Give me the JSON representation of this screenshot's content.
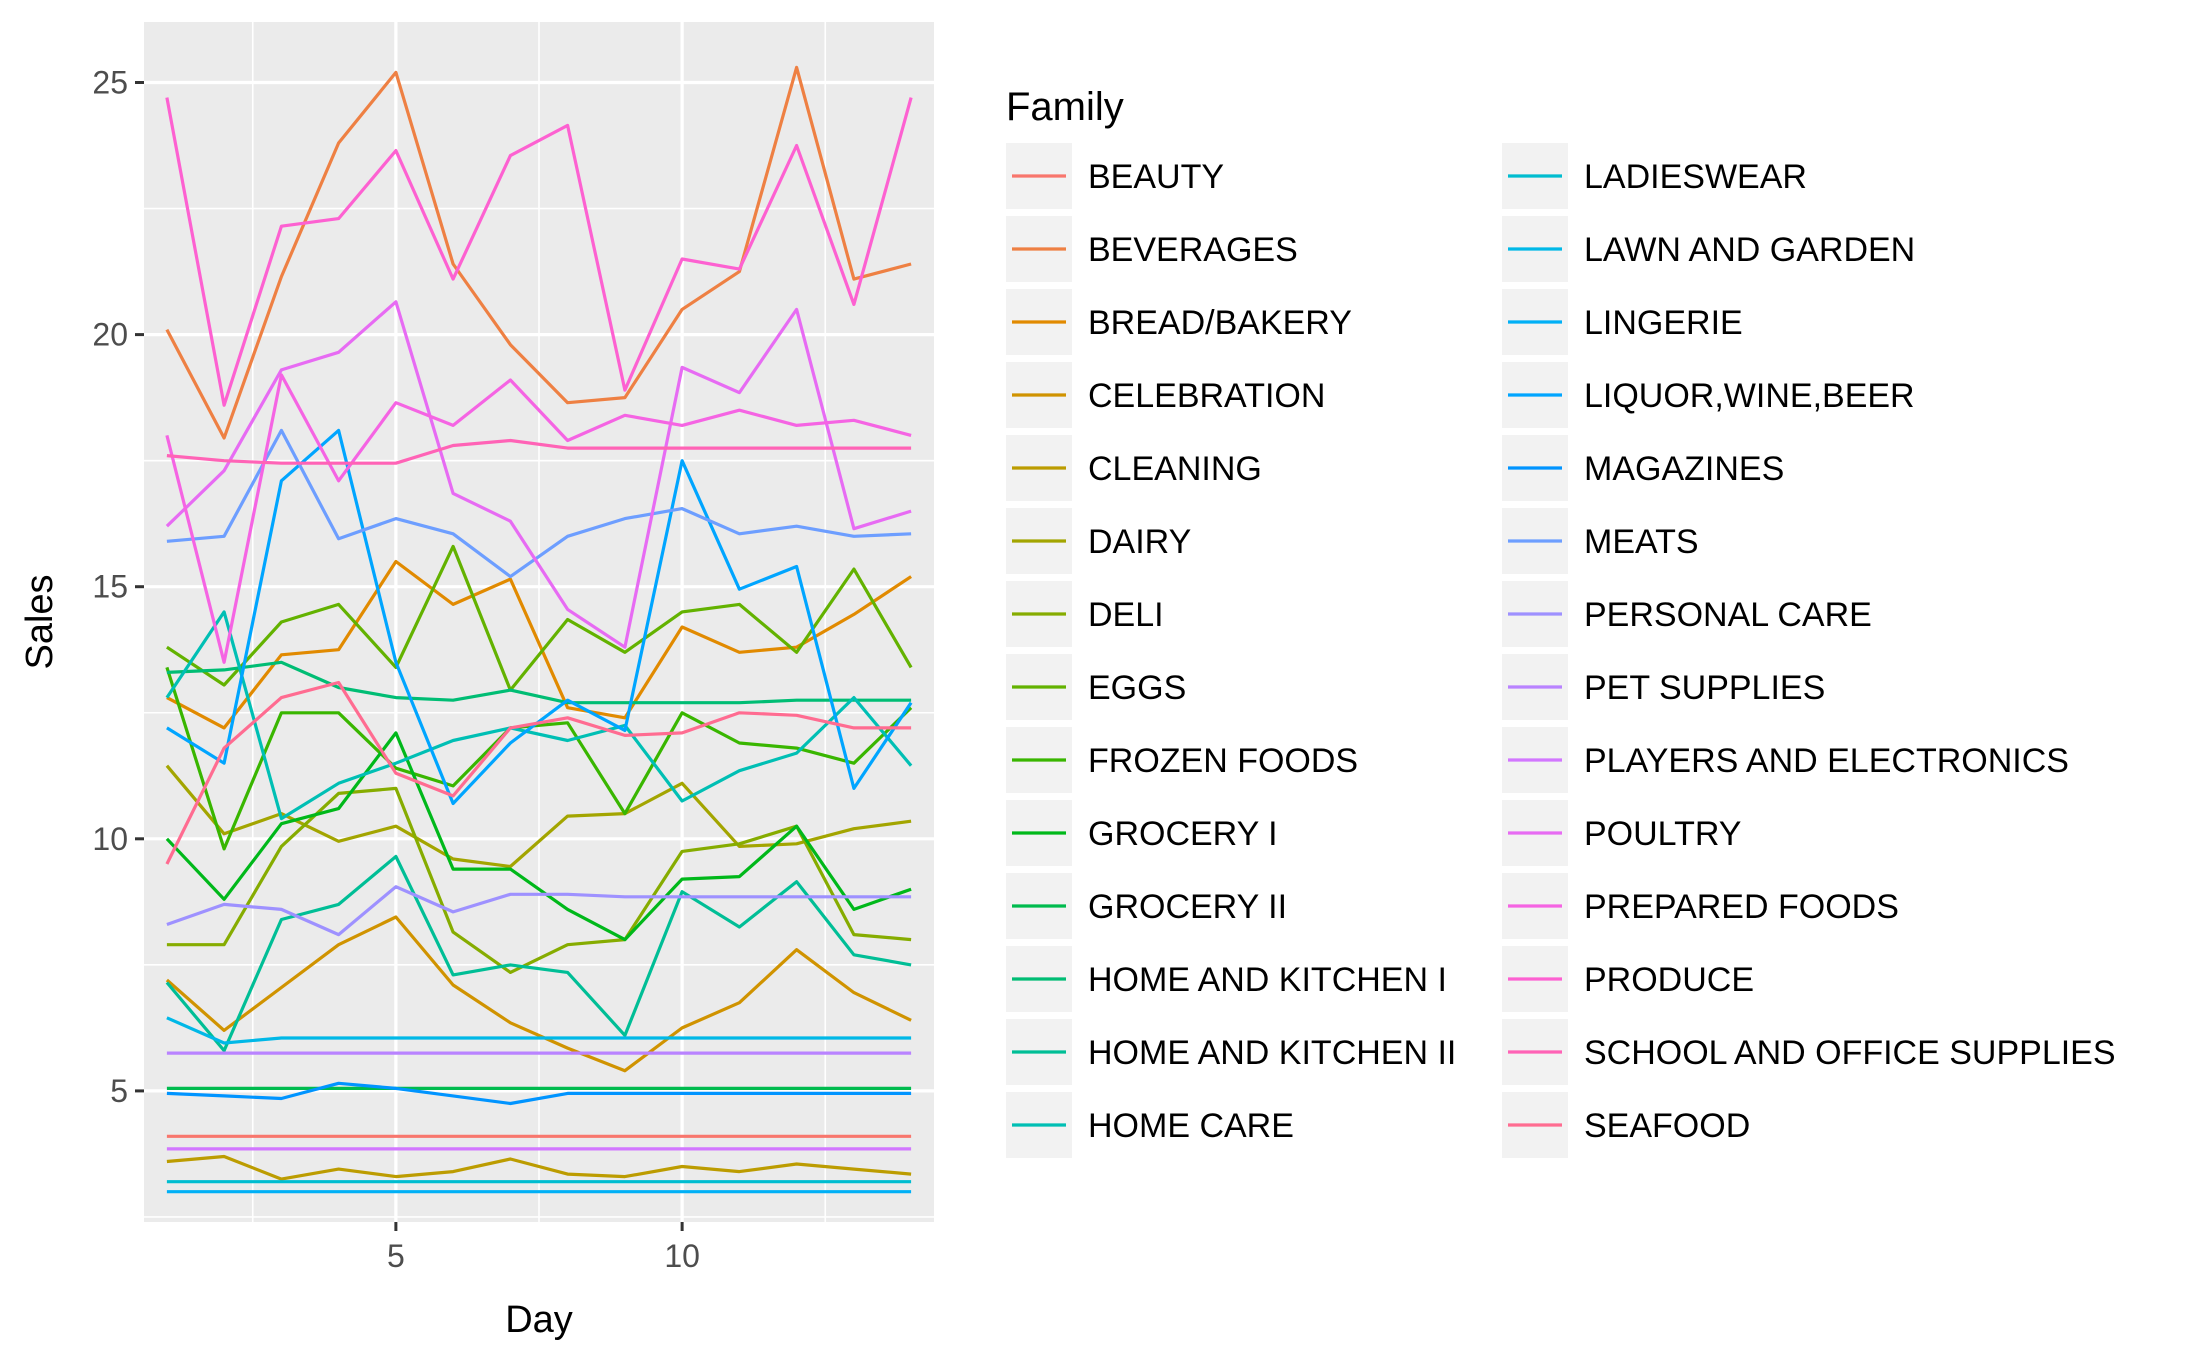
{
  "chart_data": {
    "type": "line",
    "xlabel": "Day",
    "ylabel": "Sales",
    "xlim": [
      0.6,
      14.4
    ],
    "ylim": [
      2.4,
      26.2
    ],
    "x_ticks": [
      5,
      10
    ],
    "y_ticks": [
      5,
      10,
      15,
      20,
      25
    ],
    "grid": true,
    "legend_title": "Family",
    "legend_position": "right",
    "x": [
      1,
      2,
      3,
      4,
      5,
      6,
      7,
      8,
      9,
      10,
      11,
      12,
      13,
      14
    ],
    "series": [
      {
        "name": "BEAUTY",
        "color": "#F8766D",
        "values": [
          4.1,
          4.1,
          4.1,
          4.1,
          4.1,
          4.1,
          4.1,
          4.1,
          4.1,
          4.1,
          4.1,
          4.1,
          4.1,
          4.1
        ]
      },
      {
        "name": "BEVERAGES",
        "color": "#EE8043",
        "values": [
          20.1,
          17.95,
          21.15,
          23.8,
          25.2,
          21.4,
          19.8,
          18.65,
          18.75,
          20.5,
          21.25,
          25.3,
          21.1,
          21.4
        ]
      },
      {
        "name": "BREAD/BAKERY",
        "color": "#E18A00",
        "values": [
          12.8,
          12.2,
          13.65,
          13.75,
          15.5,
          14.65,
          15.15,
          12.6,
          12.4,
          14.2,
          13.7,
          13.8,
          14.45,
          15.2
        ]
      },
      {
        "name": "CELEBRATION",
        "color": "#D09300",
        "values": [
          7.2,
          6.2,
          7.05,
          7.9,
          8.45,
          7.1,
          6.35,
          5.85,
          5.4,
          6.25,
          6.75,
          7.8,
          6.95,
          6.4
        ]
      },
      {
        "name": "CLEANING",
        "color": "#BC9C00",
        "values": [
          3.6,
          3.7,
          3.25,
          3.45,
          3.3,
          3.4,
          3.65,
          3.35,
          3.3,
          3.5,
          3.4,
          3.55,
          3.45,
          3.35
        ]
      },
      {
        "name": "DAIRY",
        "color": "#A3A500",
        "values": [
          11.45,
          10.1,
          10.5,
          9.95,
          10.25,
          9.6,
          9.45,
          10.45,
          10.5,
          11.1,
          9.85,
          9.9,
          10.2,
          10.35
        ]
      },
      {
        "name": "DELI",
        "color": "#86AC00",
        "values": [
          7.9,
          7.9,
          9.85,
          10.9,
          11.0,
          8.15,
          7.35,
          7.9,
          8.0,
          9.75,
          9.9,
          10.25,
          8.1,
          8.0
        ]
      },
      {
        "name": "EGGS",
        "color": "#63B200",
        "values": [
          13.8,
          13.05,
          14.3,
          14.65,
          13.4,
          15.8,
          12.95,
          14.35,
          13.7,
          14.5,
          14.65,
          13.7,
          15.35,
          13.4
        ]
      },
      {
        "name": "FROZEN FOODS",
        "color": "#39B600",
        "values": [
          13.4,
          9.8,
          12.5,
          12.5,
          11.4,
          11.05,
          12.2,
          12.3,
          10.5,
          12.5,
          11.9,
          11.8,
          11.5,
          12.6
        ]
      },
      {
        "name": "GROCERY I",
        "color": "#00B81A",
        "values": [
          10.0,
          8.8,
          10.3,
          10.6,
          12.1,
          9.4,
          9.4,
          8.6,
          8.0,
          9.2,
          9.25,
          10.25,
          8.6,
          9.0
        ]
      },
      {
        "name": "GROCERY II",
        "color": "#00BB4E",
        "values": [
          5.05,
          5.05,
          5.05,
          5.05,
          5.05,
          5.05,
          5.05,
          5.05,
          5.05,
          5.05,
          5.05,
          5.05,
          5.05,
          5.05
        ]
      },
      {
        "name": "HOME AND KITCHEN I",
        "color": "#00BD74",
        "values": [
          13.3,
          13.35,
          13.5,
          13.0,
          12.8,
          12.75,
          12.95,
          12.7,
          12.7,
          12.7,
          12.7,
          12.75,
          12.75,
          12.75
        ]
      },
      {
        "name": "HOME AND KITCHEN II",
        "color": "#00BE96",
        "values": [
          7.15,
          5.8,
          8.4,
          8.7,
          9.65,
          7.3,
          7.5,
          7.35,
          6.1,
          8.95,
          8.25,
          9.15,
          7.7,
          7.5
        ]
      },
      {
        "name": "HOME CARE",
        "color": "#00BFB4",
        "values": [
          12.8,
          14.5,
          10.4,
          11.1,
          11.5,
          11.95,
          12.2,
          11.95,
          12.25,
          10.75,
          11.35,
          11.7,
          12.8,
          11.45
        ]
      },
      {
        "name": "LADIESWEAR",
        "color": "#00BDD0",
        "values": [
          3.2,
          3.2,
          3.2,
          3.2,
          3.2,
          3.2,
          3.2,
          3.2,
          3.2,
          3.2,
          3.2,
          3.2,
          3.2,
          3.2
        ]
      },
      {
        "name": "LAWN AND GARDEN",
        "color": "#00B8E7",
        "values": [
          6.45,
          5.95,
          6.05,
          6.05,
          6.05,
          6.05,
          6.05,
          6.05,
          6.05,
          6.05,
          6.05,
          6.05,
          6.05,
          6.05
        ]
      },
      {
        "name": "LINGERIE",
        "color": "#00B0F6",
        "values": [
          3.0,
          3.0,
          3.0,
          3.0,
          3.0,
          3.0,
          3.0,
          3.0,
          3.0,
          3.0,
          3.0,
          3.0,
          3.0,
          3.0
        ]
      },
      {
        "name": "LIQUOR,WINE,BEER",
        "color": "#00A5FF",
        "values": [
          12.2,
          11.5,
          17.1,
          18.1,
          13.5,
          10.7,
          11.9,
          12.75,
          12.15,
          17.5,
          14.95,
          15.4,
          11.0,
          12.7
        ]
      },
      {
        "name": "MAGAZINES",
        "color": "#0094FF",
        "values": [
          4.95,
          4.9,
          4.85,
          5.15,
          5.05,
          4.9,
          4.75,
          4.95,
          4.95,
          4.95,
          4.95,
          4.95,
          4.95,
          4.95
        ]
      },
      {
        "name": "MEATS",
        "color": "#6D9EFF",
        "values": [
          15.9,
          16.0,
          18.1,
          15.95,
          16.35,
          16.05,
          15.2,
          16.0,
          16.35,
          16.55,
          16.05,
          16.2,
          16.0,
          16.05
        ]
      },
      {
        "name": "PERSONAL CARE",
        "color": "#9E91FF",
        "values": [
          8.3,
          8.7,
          8.6,
          8.1,
          9.05,
          8.55,
          8.9,
          8.9,
          8.85,
          8.85,
          8.85,
          8.85,
          8.85,
          8.85
        ]
      },
      {
        "name": "PET SUPPLIES",
        "color": "#B983FF",
        "values": [
          5.75,
          5.75,
          5.75,
          5.75,
          5.75,
          5.75,
          5.75,
          5.75,
          5.75,
          5.75,
          5.75,
          5.75,
          5.75,
          5.75
        ]
      },
      {
        "name": "PLAYERS AND ELECTRONICS",
        "color": "#D277FF",
        "values": [
          3.85,
          3.85,
          3.85,
          3.85,
          3.85,
          3.85,
          3.85,
          3.85,
          3.85,
          3.85,
          3.85,
          3.85,
          3.85,
          3.85
        ]
      },
      {
        "name": "POULTRY",
        "color": "#E76BF3",
        "values": [
          16.2,
          17.3,
          19.3,
          19.65,
          20.65,
          16.85,
          16.3,
          14.55,
          13.8,
          19.35,
          18.85,
          20.5,
          16.15,
          16.5
        ]
      },
      {
        "name": "PREPARED FOODS",
        "color": "#F564E3",
        "values": [
          18.0,
          13.5,
          19.2,
          17.1,
          18.65,
          18.2,
          19.1,
          17.9,
          18.4,
          18.2,
          18.5,
          18.2,
          18.3,
          18.0
        ]
      },
      {
        "name": "PRODUCE",
        "color": "#FD61D1",
        "values": [
          24.7,
          18.6,
          22.15,
          22.3,
          23.65,
          21.1,
          23.55,
          24.15,
          18.9,
          21.5,
          21.3,
          23.75,
          20.6,
          24.7
        ]
      },
      {
        "name": "SCHOOL AND OFFICE SUPPLIES",
        "color": "#FF63B6",
        "values": [
          17.6,
          17.5,
          17.45,
          17.45,
          17.45,
          17.8,
          17.9,
          17.75,
          17.75,
          17.75,
          17.75,
          17.75,
          17.75,
          17.75
        ]
      },
      {
        "name": "SEAFOOD",
        "color": "#FF6C91",
        "values": [
          9.5,
          11.8,
          12.8,
          13.1,
          11.3,
          10.85,
          12.2,
          12.4,
          12.05,
          12.1,
          12.5,
          12.45,
          12.2,
          12.2
        ]
      }
    ]
  }
}
